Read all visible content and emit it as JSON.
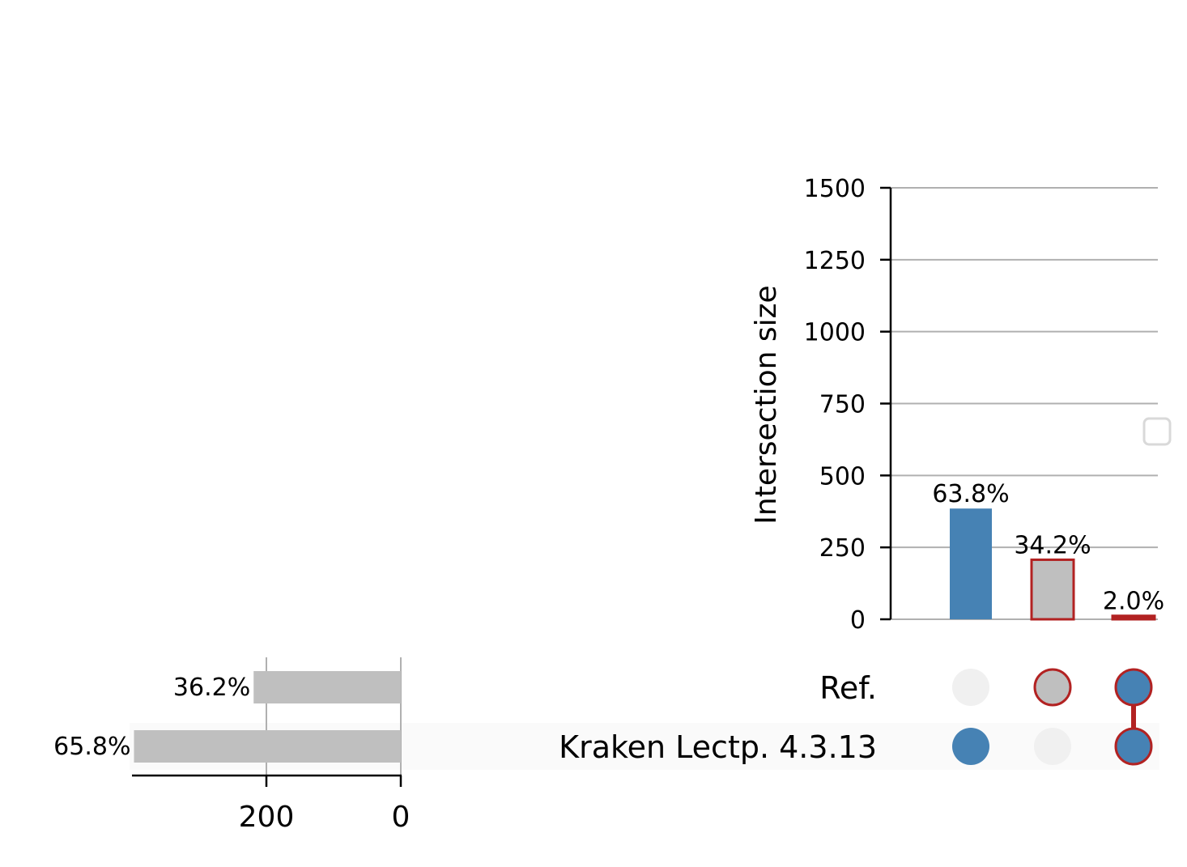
{
  "chart_data": [
    {
      "type": "bar",
      "panel": "intersections",
      "ylabel": "Intersection size",
      "ylim": [
        0,
        1500
      ],
      "yticks": [
        0,
        250,
        500,
        750,
        1000,
        1250,
        1500
      ],
      "grid": true,
      "intersections": [
        {
          "members": [
            "Kraken Lectp. 4.3.13"
          ],
          "value": 385,
          "label": "63.8%",
          "color": "#4682b4",
          "highlight": false
        },
        {
          "members": [
            "Ref."
          ],
          "value": 207,
          "label": "34.2%",
          "color": "#bfbfbf",
          "highlight": true
        },
        {
          "members": [
            "Ref.",
            "Kraken Lectp. 4.3.13"
          ],
          "value": 12,
          "label": "2.0%",
          "color": "#4682b4",
          "highlight": true
        }
      ],
      "highlight_color": "#b22222",
      "legend": "right"
    },
    {
      "type": "bar",
      "panel": "set sizes",
      "orientation": "horizontal",
      "categories": [
        "Ref.",
        "Kraken Lectp. 4.3.13"
      ],
      "values": [
        219,
        397
      ],
      "labels": [
        "36.2%",
        "65.8%"
      ],
      "color": "#bfbfbf",
      "xlim": [
        400,
        0
      ],
      "xticks": [
        200,
        0
      ]
    }
  ],
  "colors": {
    "inactive_dot": "#f0f0f0",
    "grid": "#b0b0b0",
    "row_shade": "#fafafa"
  },
  "icons": [
    "legend-box-icon"
  ]
}
